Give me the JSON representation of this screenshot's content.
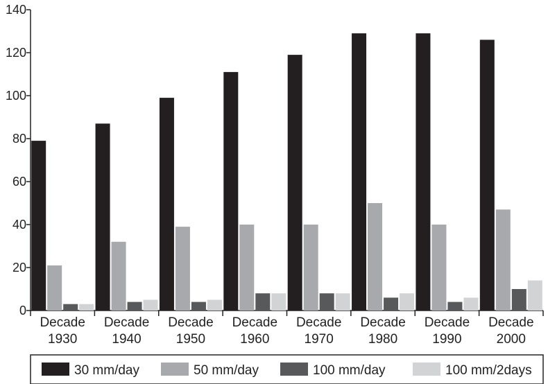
{
  "chart_data": {
    "type": "bar",
    "title": "",
    "xlabel": "",
    "ylabel": "",
    "ylim": [
      0,
      140
    ],
    "yticks": [
      0,
      20,
      40,
      60,
      80,
      100,
      120,
      140
    ],
    "grid": false,
    "legend_position": "bottom",
    "categories": [
      [
        "Decade",
        "1930"
      ],
      [
        "Decade",
        "1940"
      ],
      [
        "Decade",
        "1950"
      ],
      [
        "Decade",
        "1960"
      ],
      [
        "Decade",
        "1970"
      ],
      [
        "Decade",
        "1980"
      ],
      [
        "Decade",
        "1990"
      ],
      [
        "Decade",
        "2000"
      ]
    ],
    "series": [
      {
        "name": "30 mm/day",
        "color": "#231f20",
        "values": [
          79,
          87,
          99,
          111,
          119,
          129,
          129,
          126
        ]
      },
      {
        "name": "50 mm/day",
        "color": "#a7a9ac",
        "values": [
          21,
          32,
          39,
          40,
          40,
          50,
          40,
          47
        ]
      },
      {
        "name": "100 mm/day",
        "color": "#58595b",
        "values": [
          3,
          4,
          4,
          8,
          8,
          6,
          4,
          10
        ]
      },
      {
        "name": "100 mm/2days",
        "color": "#d1d3d4",
        "values": [
          3,
          5,
          5,
          8,
          8,
          8,
          6,
          14
        ]
      }
    ]
  }
}
